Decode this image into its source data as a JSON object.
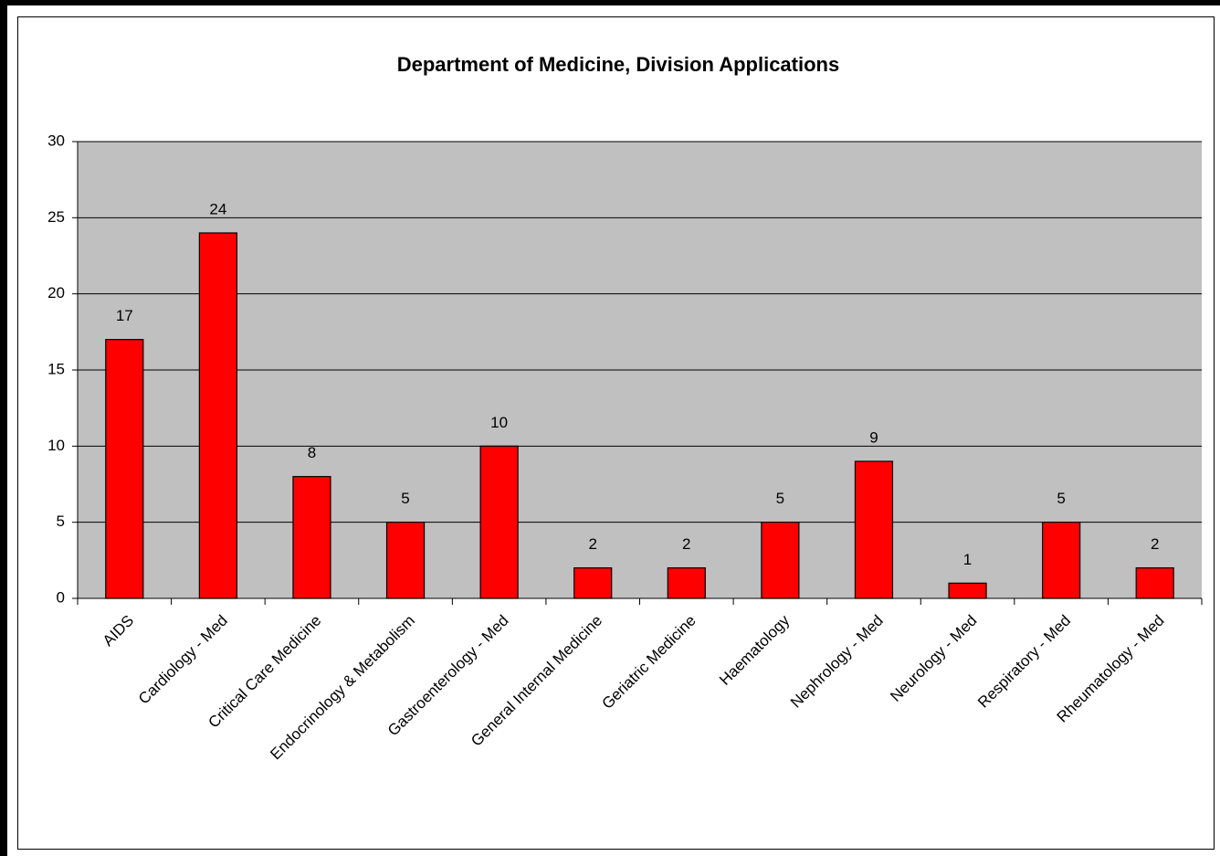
{
  "chart_data": {
    "type": "bar",
    "title": "Department of Medicine, Division Applications",
    "categories": [
      "AIDS",
      "Cardiology - Med",
      "Critical Care Medicine",
      "Endocrinology & Metabolism",
      "Gastroenterology - Med",
      "General Internal Medicine",
      "Geriatric Medicine",
      "Haematology",
      "Nephrology - Med",
      "Neurology - Med",
      "Respiratory - Med",
      "Rheumatology - Med"
    ],
    "values": [
      17,
      24,
      8,
      5,
      10,
      2,
      2,
      5,
      9,
      1,
      5,
      2
    ],
    "color": "#ff0000",
    "ylim": [
      0,
      30
    ],
    "yticks": [
      0,
      5,
      10,
      15,
      20,
      25,
      30
    ],
    "grid": true
  }
}
